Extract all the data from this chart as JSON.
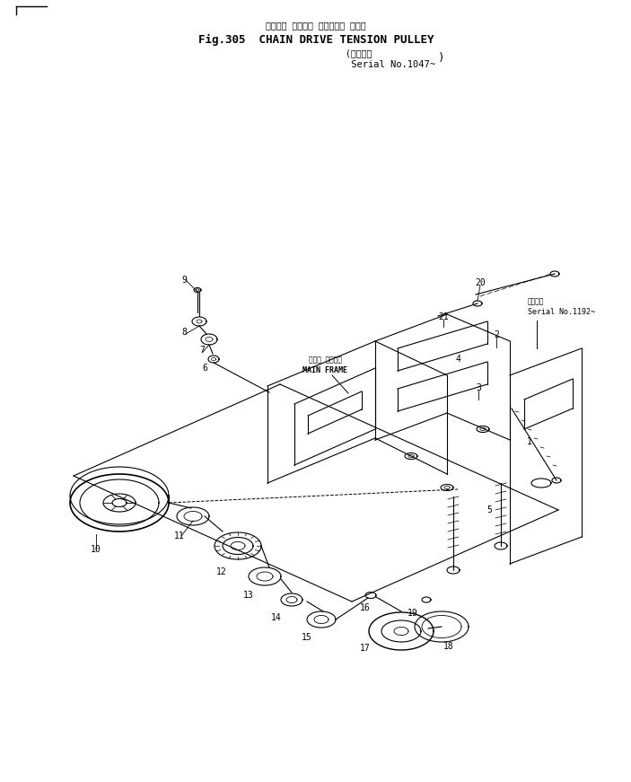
{
  "title_japanese": "チェーン ドライブ テンション プーリ",
  "title_english": "Fig.305  CHAIN DRIVE TENSION PULLEY",
  "subtitle_japanese": "適用号機",
  "subtitle_english": "Serial No.1047~",
  "serial_note": "Serial No.1192~",
  "bg_color": "#ffffff",
  "line_color": "#000000",
  "text_color": "#000000",
  "fig_width": 7.03,
  "fig_height": 8.71
}
